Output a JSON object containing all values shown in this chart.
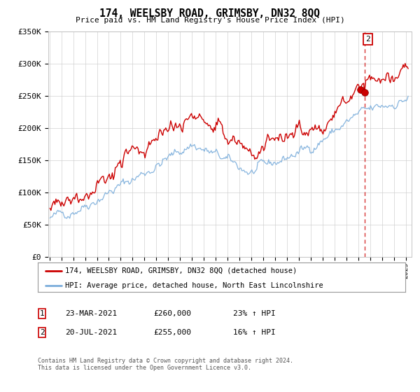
{
  "title": "174, WEELSBY ROAD, GRIMSBY, DN32 8QQ",
  "subtitle": "Price paid vs. HM Land Registry's House Price Index (HPI)",
  "red_label": "174, WEELSBY ROAD, GRIMSBY, DN32 8QQ (detached house)",
  "blue_label": "HPI: Average price, detached house, North East Lincolnshire",
  "annotation1_date": "23-MAR-2021",
  "annotation1_price": "£260,000",
  "annotation1_pct": "23% ↑ HPI",
  "annotation2_date": "20-JUL-2021",
  "annotation2_price": "£255,000",
  "annotation2_pct": "16% ↑ HPI",
  "footnote": "Contains HM Land Registry data © Crown copyright and database right 2024.\nThis data is licensed under the Open Government Licence v3.0.",
  "red_color": "#cc0000",
  "blue_color": "#7aaddb",
  "dashed_color": "#cc0000",
  "ylim_min": 0,
  "ylim_max": 350000,
  "yticks": [
    0,
    50000,
    100000,
    150000,
    200000,
    250000,
    300000,
    350000
  ],
  "ytick_labels": [
    "£0",
    "£50K",
    "£100K",
    "£150K",
    "£200K",
    "£250K",
    "£300K",
    "£350K"
  ],
  "sale1_year": 2021,
  "sale1_month": 3,
  "sale1_price": 260000,
  "sale2_year": 2021,
  "sale2_month": 7,
  "sale2_price": 255000
}
